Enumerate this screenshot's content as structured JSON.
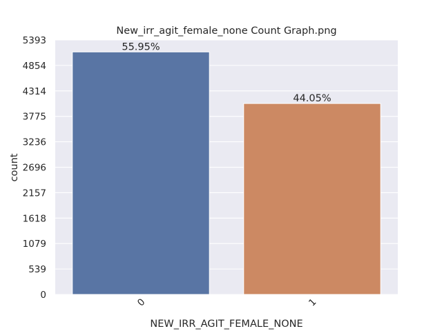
{
  "chart_data": {
    "type": "bar",
    "title": "New_irr_agit_female_none Count Graph.png",
    "xlabel": "NEW_IRR_AGIT_FEMALE_NONE",
    "ylabel": "count",
    "categories": [
      "0",
      "1"
    ],
    "values": [
      5140,
      4047
    ],
    "percent_labels": [
      "55.95%",
      "44.05%"
    ],
    "bar_colors": [
      "#5975a4",
      "#cc8963"
    ],
    "ylim": [
      0,
      5393
    ],
    "yticks": [
      0,
      539,
      1079,
      1618,
      2157,
      2696,
      3236,
      3775,
      4314,
      4854,
      5393
    ],
    "ytick_labels": [
      "0",
      "539",
      "1079",
      "1618",
      "2157",
      "2696",
      "3236",
      "3775",
      "4314",
      "4854",
      "5393"
    ],
    "grid": true,
    "legend": "none",
    "plot_background": "#eaeaf2",
    "grid_color": "#ffffff",
    "xtick_rotation_deg": -45
  }
}
